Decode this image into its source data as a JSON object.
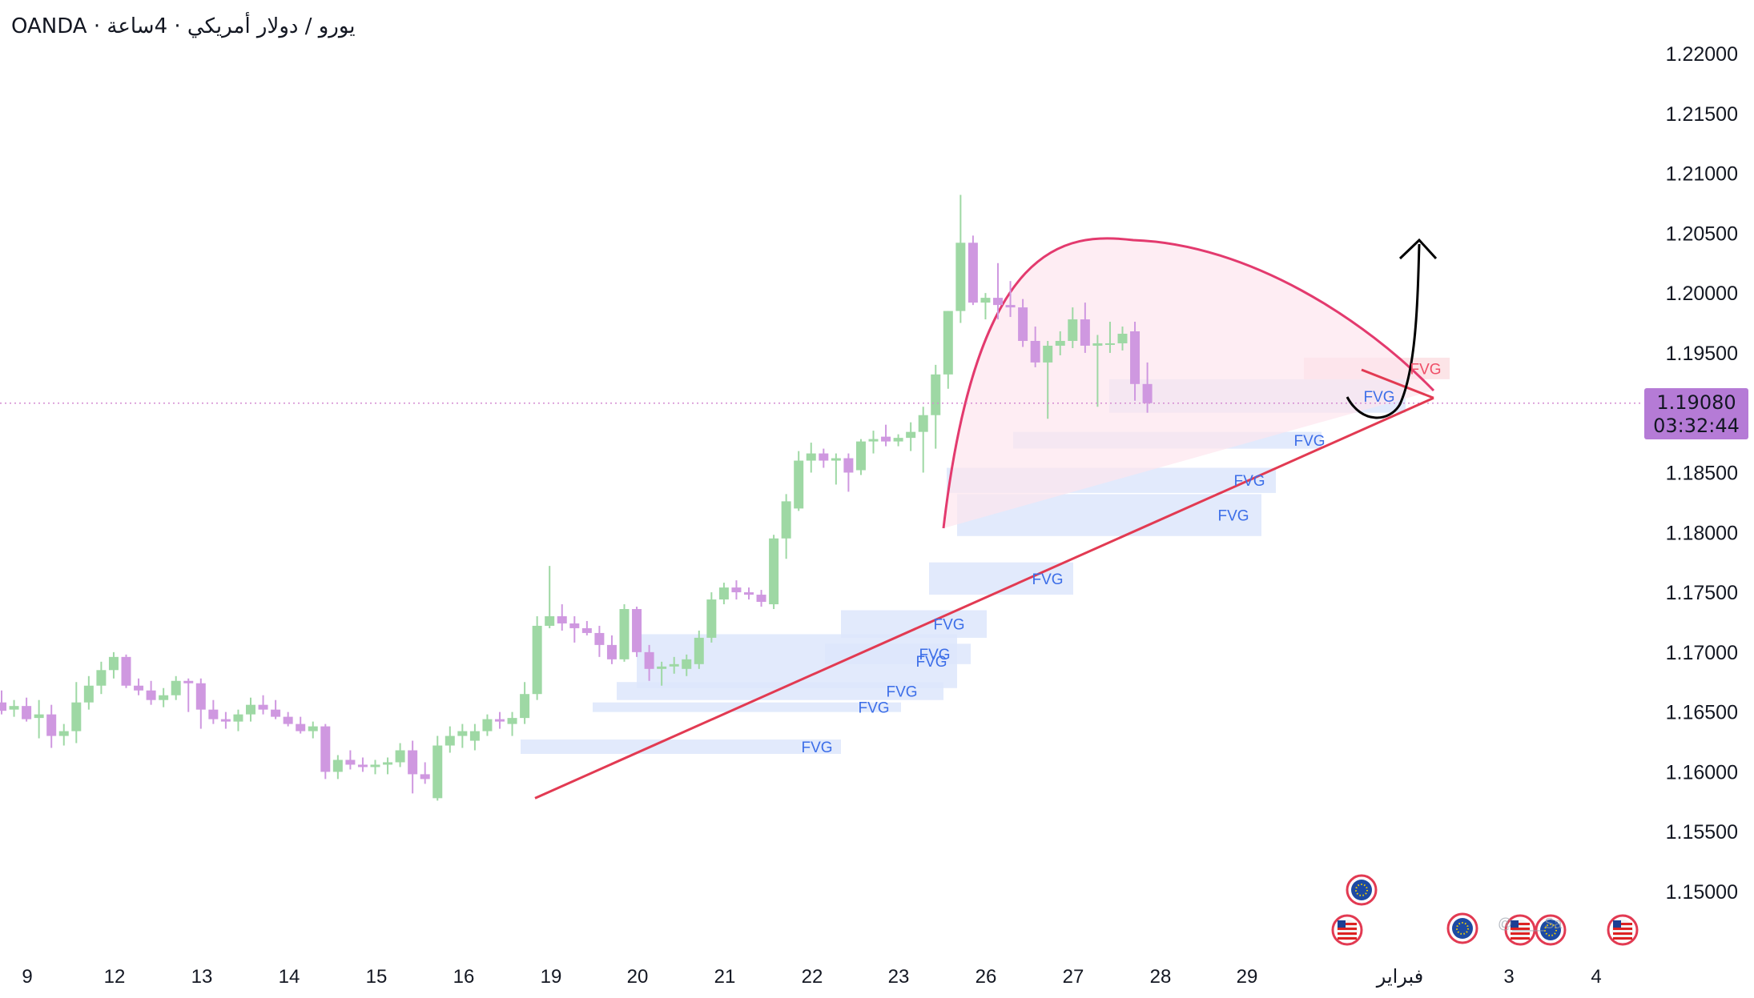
{
  "header": {
    "title": "OANDA · يورو / دولار أمريكي · 4ساعة"
  },
  "price_tag": {
    "price": "1.19080",
    "countdown": "03:32:44"
  },
  "colors": {
    "up": "#9ed8a4",
    "down": "#cf98e0",
    "fvg_bull": "#dde6fb",
    "fvg_bear": "#fbdfe3",
    "trendline": "#e23a52",
    "cup": "#e33a6e",
    "cup_fill": "#fde6ee",
    "arrow": "#000000",
    "axis_text": "#131722",
    "fvg_label": "#3c6ee8",
    "fvg_label_bear": "#ef4f68",
    "price_line": "#d48bd2",
    "price_tag": "#b57bd6"
  },
  "icons": [
    "eu-flag-icon",
    "us-flag-icon",
    "eu-flag-icon",
    "us-flag-icon",
    "eu-flag-icon",
    "us-flag-icon"
  ],
  "chart_data": {
    "type": "candlestick",
    "symbol": "EUR/USD",
    "timeframe": "4h",
    "ylim": [
      1.146,
      1.224
    ],
    "y_ticks": [
      "1.22000",
      "1.21500",
      "1.21000",
      "1.20500",
      "1.20000",
      "1.19500",
      "1.19080",
      "1.18500",
      "1.18000",
      "1.17500",
      "1.17000",
      "1.16500",
      "1.16000",
      "1.15500",
      "1.15000"
    ],
    "x_ticks": [
      "9",
      "12",
      "13",
      "14",
      "15",
      "16",
      "19",
      "20",
      "21",
      "22",
      "23",
      "26",
      "27",
      "28",
      "29",
      "فبراير",
      "3",
      "4"
    ],
    "last_price": 1.1908,
    "candles": [
      [
        1.1658,
        1.1668,
        1.1648,
        1.1651
      ],
      [
        1.1652,
        1.166,
        1.1646,
        1.1655
      ],
      [
        1.1655,
        1.1662,
        1.1642,
        1.1644
      ],
      [
        1.1645,
        1.166,
        1.1628,
        1.1648
      ],
      [
        1.1648,
        1.1656,
        1.162,
        1.163
      ],
      [
        1.163,
        1.164,
        1.1622,
        1.1634
      ],
      [
        1.1634,
        1.1675,
        1.1624,
        1.1658
      ],
      [
        1.1658,
        1.168,
        1.1652,
        1.1672
      ],
      [
        1.1672,
        1.1692,
        1.1665,
        1.1685
      ],
      [
        1.1685,
        1.17,
        1.1678,
        1.1696
      ],
      [
        1.1696,
        1.1698,
        1.167,
        1.1672
      ],
      [
        1.1672,
        1.1678,
        1.1664,
        1.1668
      ],
      [
        1.1668,
        1.1676,
        1.1656,
        1.166
      ],
      [
        1.166,
        1.167,
        1.1654,
        1.1664
      ],
      [
        1.1664,
        1.168,
        1.166,
        1.1676
      ],
      [
        1.1676,
        1.1678,
        1.165,
        1.1674
      ],
      [
        1.1674,
        1.1678,
        1.1636,
        1.1652
      ],
      [
        1.1652,
        1.166,
        1.164,
        1.1644
      ],
      [
        1.1644,
        1.165,
        1.1636,
        1.1642
      ],
      [
        1.1642,
        1.1652,
        1.1634,
        1.1648
      ],
      [
        1.1648,
        1.1662,
        1.1642,
        1.1656
      ],
      [
        1.1656,
        1.1664,
        1.1648,
        1.1652
      ],
      [
        1.1652,
        1.166,
        1.1644,
        1.1646
      ],
      [
        1.1646,
        1.165,
        1.1638,
        1.164
      ],
      [
        1.164,
        1.1646,
        1.1632,
        1.1634
      ],
      [
        1.1634,
        1.1642,
        1.1628,
        1.1638
      ],
      [
        1.1638,
        1.164,
        1.1594,
        1.16
      ],
      [
        1.16,
        1.1614,
        1.1594,
        1.161
      ],
      [
        1.161,
        1.1618,
        1.1602,
        1.1606
      ],
      [
        1.1606,
        1.1612,
        1.16,
        1.1604
      ],
      [
        1.1604,
        1.161,
        1.1598,
        1.1606
      ],
      [
        1.1606,
        1.1612,
        1.1598,
        1.1608
      ],
      [
        1.1608,
        1.1624,
        1.1604,
        1.1618
      ],
      [
        1.1618,
        1.1626,
        1.1582,
        1.1598
      ],
      [
        1.1598,
        1.1608,
        1.159,
        1.1594
      ],
      [
        1.1578,
        1.163,
        1.1576,
        1.1622
      ],
      [
        1.1622,
        1.1638,
        1.1616,
        1.163
      ],
      [
        1.163,
        1.164,
        1.162,
        1.1634
      ],
      [
        1.1626,
        1.164,
        1.1618,
        1.1634
      ],
      [
        1.1634,
        1.1648,
        1.163,
        1.1644
      ],
      [
        1.1644,
        1.165,
        1.1636,
        1.1642
      ],
      [
        1.164,
        1.165,
        1.163,
        1.1645
      ],
      [
        1.1645,
        1.1675,
        1.164,
        1.1665
      ],
      [
        1.1665,
        1.173,
        1.166,
        1.1722
      ],
      [
        1.1722,
        1.1772,
        1.172,
        1.173
      ],
      [
        1.173,
        1.174,
        1.1718,
        1.1724
      ],
      [
        1.1724,
        1.173,
        1.1708,
        1.172
      ],
      [
        1.172,
        1.1726,
        1.1714,
        1.1716
      ],
      [
        1.1716,
        1.1722,
        1.1696,
        1.1706
      ],
      [
        1.1706,
        1.1714,
        1.169,
        1.1694
      ],
      [
        1.1694,
        1.174,
        1.1692,
        1.1736
      ],
      [
        1.1736,
        1.1738,
        1.1696,
        1.17
      ],
      [
        1.17,
        1.1706,
        1.1676,
        1.1686
      ],
      [
        1.1686,
        1.1692,
        1.1672,
        1.1688
      ],
      [
        1.1688,
        1.1696,
        1.1682,
        1.169
      ],
      [
        1.1686,
        1.1698,
        1.168,
        1.1694
      ],
      [
        1.169,
        1.1718,
        1.1686,
        1.1712
      ],
      [
        1.1712,
        1.175,
        1.1708,
        1.1744
      ],
      [
        1.1744,
        1.1758,
        1.174,
        1.1754
      ],
      [
        1.1754,
        1.176,
        1.1744,
        1.175
      ],
      [
        1.175,
        1.1754,
        1.1744,
        1.1748
      ],
      [
        1.1748,
        1.1752,
        1.1738,
        1.1742
      ],
      [
        1.174,
        1.1798,
        1.1736,
        1.1795
      ],
      [
        1.1795,
        1.1832,
        1.1778,
        1.1826
      ],
      [
        1.182,
        1.1868,
        1.1818,
        1.186
      ],
      [
        1.186,
        1.1875,
        1.185,
        1.1866
      ],
      [
        1.1866,
        1.187,
        1.1854,
        1.186
      ],
      [
        1.186,
        1.1866,
        1.184,
        1.1862
      ],
      [
        1.1862,
        1.1866,
        1.1834,
        1.185
      ],
      [
        1.1852,
        1.1878,
        1.1848,
        1.1876
      ],
      [
        1.1876,
        1.1885,
        1.1866,
        1.1878
      ],
      [
        1.188,
        1.189,
        1.1872,
        1.1876
      ],
      [
        1.1876,
        1.1882,
        1.1872,
        1.1879
      ],
      [
        1.1879,
        1.1892,
        1.1868,
        1.1884
      ],
      [
        1.1884,
        1.1905,
        1.185,
        1.1898
      ],
      [
        1.1898,
        1.194,
        1.187,
        1.1932
      ],
      [
        1.1932,
        1.1985,
        1.192,
        1.1985
      ],
      [
        1.1985,
        1.2082,
        1.1975,
        1.2042
      ],
      [
        1.2042,
        1.2048,
        1.199,
        1.1992
      ],
      [
        1.1992,
        1.2,
        1.1978,
        1.1996
      ],
      [
        1.1996,
        1.2025,
        1.1978,
        1.199
      ],
      [
        1.199,
        1.201,
        1.198,
        1.1988
      ],
      [
        1.1988,
        1.1995,
        1.1955,
        1.196
      ],
      [
        1.196,
        1.1972,
        1.1938,
        1.1942
      ],
      [
        1.1942,
        1.196,
        1.1895,
        1.1956
      ],
      [
        1.1956,
        1.1968,
        1.1948,
        1.196
      ],
      [
        1.196,
        1.1988,
        1.1954,
        1.1978
      ],
      [
        1.1978,
        1.1992,
        1.195,
        1.1956
      ],
      [
        1.1956,
        1.1965,
        1.1905,
        1.1958
      ],
      [
        1.1958,
        1.1976,
        1.195,
        1.1958
      ],
      [
        1.1958,
        1.1972,
        1.1952,
        1.1966
      ],
      [
        1.1968,
        1.1976,
        1.191,
        1.1924
      ],
      [
        1.1924,
        1.1942,
        1.19,
        1.1908
      ]
    ],
    "fvg_zones": [
      {
        "label": "FVG",
        "low": 1.1615,
        "high": 1.1627
      },
      {
        "label": "FVG",
        "low": 1.165,
        "high": 1.1658
      },
      {
        "label": "FVG",
        "low": 1.166,
        "high": 1.1675
      },
      {
        "label": "FVG",
        "low": 1.167,
        "high": 1.1715
      },
      {
        "label": "FVG",
        "low": 1.169,
        "high": 1.1707
      },
      {
        "label": "FVG",
        "low": 1.1712,
        "high": 1.1735
      },
      {
        "label": "FVG",
        "low": 1.1748,
        "high": 1.1775
      },
      {
        "label": "FVG",
        "low": 1.1797,
        "high": 1.1832
      },
      {
        "label": "FVG",
        "low": 1.1833,
        "high": 1.1854
      },
      {
        "label": "FVG",
        "low": 1.187,
        "high": 1.1884
      },
      {
        "label": "FVG",
        "low": 1.19,
        "high": 1.1928
      },
      {
        "label": "FVG",
        "low": 1.1928,
        "high": 1.1946,
        "bearish": true
      }
    ],
    "fvg_labels": [
      "FVG",
      "FVG",
      "FVG",
      "FVG",
      "FVG",
      "FVG",
      "FVG",
      "FVG",
      "FVG",
      "FVG",
      "FVG",
      "FVG"
    ],
    "trendline": {
      "from": [
        1.1578
      ],
      "to": [
        1.1915
      ]
    },
    "watermark": "@____Sa"
  }
}
